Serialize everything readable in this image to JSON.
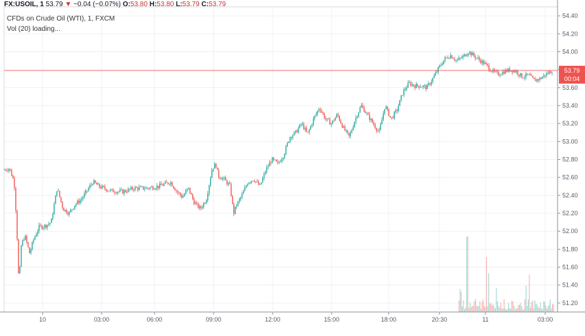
{
  "header": {
    "symbol": "FX:USOIL, 1",
    "last": "53.79",
    "change_arrow": "▼",
    "change": "−0.04 (−0.07%)",
    "o_label": "O:",
    "o_val": "53.80",
    "h_label": "H:",
    "h_val": "53.80",
    "l_label": "L:",
    "l_val": "53.79",
    "c_label": "C:",
    "c_val": "53.79"
  },
  "legend": {
    "title": "CFDs on Crude Oil (WTI), 1, FXCM",
    "indicator": "Vol (20) loading..."
  },
  "price_tag": {
    "value": "53.79",
    "countdown": "00:04"
  },
  "colors": {
    "up": "#26a69a",
    "down": "#ef5350",
    "price_line": "#ef5350",
    "grid": "#eef0f3",
    "axis_text": "#555b66"
  },
  "chart_data": {
    "type": "candlestick",
    "title": "CFDs on Crude Oil (WTI), 1, FXCM",
    "ylim": [
      51.1,
      54.5
    ],
    "y_ticks": [
      "54.40",
      "54.20",
      "54.00",
      "53.80",
      "53.60",
      "53.40",
      "53.20",
      "53.00",
      "52.80",
      "52.60",
      "52.40",
      "52.20",
      "52.00",
      "51.80",
      "51.60",
      "51.40",
      "51.20"
    ],
    "x_ticks": [
      "10",
      "03:00",
      "06:00",
      "09:00",
      "12:00",
      "15:00",
      "18:00",
      "20:30",
      "11",
      "03:00"
    ],
    "last_price": 53.79,
    "price_path": [
      [
        0,
        52.68
      ],
      [
        1,
        52.7
      ],
      [
        1.8,
        52.55
      ],
      [
        2.2,
        52.1
      ],
      [
        2.6,
        51.4
      ],
      [
        3.0,
        51.85
      ],
      [
        3.6,
        51.95
      ],
      [
        4.4,
        51.75
      ],
      [
        5,
        51.9
      ],
      [
        6,
        52.05
      ],
      [
        7,
        52.06
      ],
      [
        8,
        52.1
      ],
      [
        9,
        52.48
      ],
      [
        10,
        52.25
      ],
      [
        11,
        52.2
      ],
      [
        12,
        52.3
      ],
      [
        13,
        52.35
      ],
      [
        14,
        52.45
      ],
      [
        15,
        52.55
      ],
      [
        16,
        52.5
      ],
      [
        18,
        52.45
      ],
      [
        20,
        52.44
      ],
      [
        22,
        52.48
      ],
      [
        24,
        52.48
      ],
      [
        26,
        52.5
      ],
      [
        28,
        52.55
      ],
      [
        29,
        52.45
      ],
      [
        30,
        52.38
      ],
      [
        31,
        52.48
      ],
      [
        32,
        52.32
      ],
      [
        33,
        52.25
      ],
      [
        34,
        52.35
      ],
      [
        35,
        52.7
      ],
      [
        35.6,
        52.75
      ],
      [
        36,
        52.62
      ],
      [
        37,
        52.58
      ],
      [
        38,
        52.5
      ],
      [
        38.6,
        52.2
      ],
      [
        39,
        52.28
      ],
      [
        40,
        52.4
      ],
      [
        41,
        52.55
      ],
      [
        42,
        52.58
      ],
      [
        43,
        52.5
      ],
      [
        44,
        52.68
      ],
      [
        45,
        52.8
      ],
      [
        46,
        52.75
      ],
      [
        47,
        52.85
      ],
      [
        48,
        53.05
      ],
      [
        49,
        53.1
      ],
      [
        50,
        53.2
      ],
      [
        51,
        53.08
      ],
      [
        52,
        53.25
      ],
      [
        53,
        53.38
      ],
      [
        54,
        53.25
      ],
      [
        55,
        53.2
      ],
      [
        56,
        53.3
      ],
      [
        57,
        53.15
      ],
      [
        58,
        53.05
      ],
      [
        59,
        53.25
      ],
      [
        60,
        53.4
      ],
      [
        61,
        53.3
      ],
      [
        62,
        53.2
      ],
      [
        63,
        53.1
      ],
      [
        64,
        53.4
      ],
      [
        65,
        53.25
      ],
      [
        66,
        53.35
      ],
      [
        67,
        53.55
      ],
      [
        68,
        53.65
      ],
      [
        69,
        53.62
      ],
      [
        70,
        53.62
      ],
      [
        71,
        53.6
      ],
      [
        72,
        53.7
      ],
      [
        73,
        53.82
      ],
      [
        74,
        53.92
      ],
      [
        75,
        53.96
      ],
      [
        76,
        53.9
      ],
      [
        77,
        53.94
      ],
      [
        78,
        54.0
      ],
      [
        79,
        53.95
      ],
      [
        80,
        53.9
      ],
      [
        81,
        53.85
      ],
      [
        82,
        53.78
      ],
      [
        83,
        53.75
      ],
      [
        84,
        53.78
      ],
      [
        85,
        53.8
      ],
      [
        86,
        53.78
      ],
      [
        87,
        53.72
      ],
      [
        88,
        53.74
      ],
      [
        89,
        53.68
      ],
      [
        90,
        53.7
      ],
      [
        91,
        53.75
      ],
      [
        92,
        53.79
      ]
    ],
    "price_path_x_unit": "fractional time step (approx. 20-minute units from session start)",
    "volume_note": "Volume bars visible only for the last portion of the series (11th)"
  }
}
